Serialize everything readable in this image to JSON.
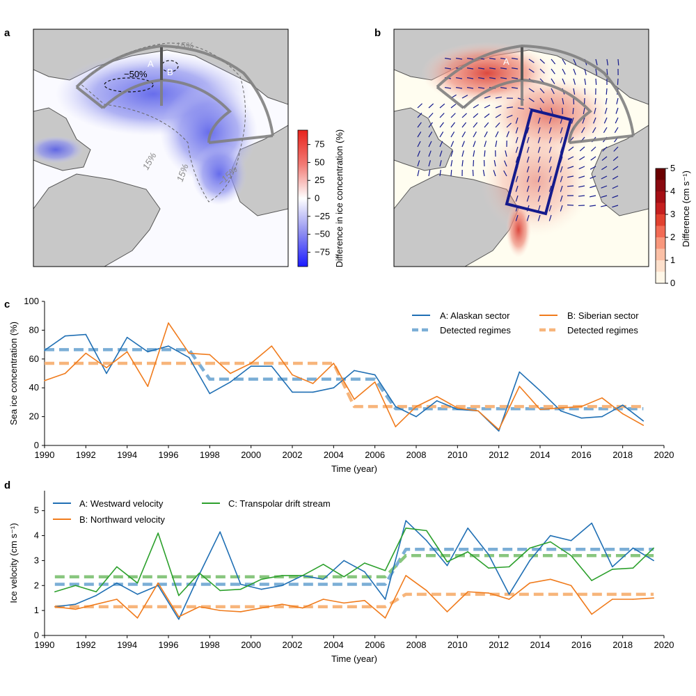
{
  "colors": {
    "blue": "#1f6fb4",
    "orange": "#f07b1c",
    "green": "#2ca02c",
    "regime_blue": "#7baed6",
    "regime_orange": "#f7b57b",
    "regime_green": "#88c67e",
    "land": "#c8c8c8",
    "coast": "#555555",
    "box": "#141a8c"
  },
  "panel_a": {
    "letter": "a",
    "labels": {
      "A": "A",
      "B": "B",
      "p50": "−50%",
      "p15a": "15%",
      "p15b": "15%",
      "p15c": "15%",
      "p15d": "−15%"
    },
    "colorbar": {
      "label": "Difference in ice concentration (%)",
      "ticks": [
        "75",
        "50",
        "25",
        "0",
        "−25",
        "−50",
        "−75"
      ],
      "range": [
        -95,
        95
      ]
    }
  },
  "panel_b": {
    "letter": "b",
    "labels": {
      "A": "A"
    },
    "colorbar": {
      "label": "Difference (cm s⁻¹)",
      "ticks": [
        "5",
        "4",
        "3",
        "2",
        "1",
        "0"
      ],
      "range": [
        0,
        5
      ]
    }
  },
  "chart_data": [
    {
      "panel": "c",
      "type": "line",
      "xlabel": "Time (year)",
      "ylabel": "Sea ice concentration (%)",
      "xlim": [
        1990,
        2020
      ],
      "ylim": [
        0,
        100
      ],
      "xticks": [
        1990,
        1992,
        1994,
        1996,
        1998,
        2000,
        2002,
        2004,
        2006,
        2008,
        2010,
        2012,
        2014,
        2016,
        2018,
        2020
      ],
      "yticks": [
        0,
        20,
        40,
        60,
        80,
        100
      ],
      "grid": false,
      "legend_position": "top-right",
      "x": [
        1990,
        1991,
        1992,
        1993,
        1994,
        1995,
        1996,
        1997,
        1998,
        1999,
        2000,
        2001,
        2002,
        2003,
        2004,
        2005,
        2006,
        2007,
        2008,
        2009,
        2010,
        2011,
        2012,
        2013,
        2014,
        2015,
        2016,
        2017,
        2018,
        2019
      ],
      "series": [
        {
          "name": "A: Alaskan sector",
          "color": "#1f6fb4",
          "values": [
            66,
            76,
            77,
            50,
            75,
            65,
            69,
            61,
            36,
            44,
            55,
            55,
            37,
            37,
            40,
            52,
            49,
            27,
            20,
            31,
            25,
            24,
            10,
            51,
            38,
            24,
            19,
            20,
            28,
            17
          ]
        },
        {
          "name": "B: Siberian sector",
          "color": "#f07b1c",
          "values": [
            45,
            50,
            64,
            54,
            65,
            41,
            85,
            64,
            63,
            50,
            57,
            69,
            49,
            43,
            57,
            32,
            44,
            13,
            27,
            34,
            26,
            24,
            11,
            41,
            25,
            26,
            27,
            33,
            22,
            14
          ]
        }
      ],
      "regimes": [
        {
          "name": "Detected regimes",
          "color": "#7baed6",
          "segments": [
            {
              "x": [
                1990,
                1997
              ],
              "y": 66.5
            },
            {
              "x": [
                1998,
                2006
              ],
              "y": 46
            },
            {
              "x": [
                2007,
                2019
              ],
              "y": 25.5
            }
          ]
        },
        {
          "name": "Detected regimes",
          "color": "#f7b57b",
          "segments": [
            {
              "x": [
                1990,
                2004
              ],
              "y": 57
            },
            {
              "x": [
                2005,
                2019
              ],
              "y": 27
            }
          ]
        }
      ]
    },
    {
      "panel": "d",
      "type": "line",
      "xlabel": "Time (year)",
      "ylabel": "Ice velocity (cm s⁻¹)",
      "xlim": [
        1990,
        2020
      ],
      "ylim": [
        0,
        5.8
      ],
      "xticks": [
        1990,
        1992,
        1994,
        1996,
        1998,
        2000,
        2002,
        2004,
        2006,
        2008,
        2010,
        2012,
        2014,
        2016,
        2018,
        2020
      ],
      "yticks": [
        0,
        1,
        2,
        3,
        4,
        5
      ],
      "grid": false,
      "legend_position": "top-left",
      "x": [
        1990.5,
        1991.5,
        1992.5,
        1993.5,
        1994.5,
        1995.5,
        1996.5,
        1997.5,
        1998.5,
        1999.5,
        2000.5,
        2001.5,
        2002.5,
        2003.5,
        2004.5,
        2005.5,
        2006.5,
        2007.5,
        2008.5,
        2009.5,
        2010.5,
        2011.5,
        2012.5,
        2013.5,
        2014.5,
        2015.5,
        2016.5,
        2017.5,
        2018.5,
        2019.5
      ],
      "series": [
        {
          "name": "A: Westward velocity",
          "color": "#1f6fb4",
          "values": [
            1.15,
            1.25,
            1.6,
            2.1,
            1.65,
            2.0,
            0.65,
            2.45,
            4.15,
            2.05,
            1.85,
            2.0,
            2.4,
            2.25,
            3.0,
            2.55,
            1.45,
            4.6,
            3.8,
            2.8,
            4.3,
            3.25,
            1.65,
            3.0,
            4.0,
            3.8,
            4.5,
            2.75,
            3.5,
            3.0
          ]
        },
        {
          "name": "B: Northward velocity",
          "color": "#f07b1c",
          "values": [
            1.15,
            1.05,
            1.25,
            1.45,
            0.7,
            2.1,
            0.75,
            1.15,
            1.0,
            0.95,
            1.1,
            1.25,
            1.1,
            1.45,
            1.3,
            1.4,
            0.7,
            2.4,
            1.8,
            0.95,
            1.75,
            1.7,
            1.45,
            2.1,
            2.25,
            2.0,
            0.85,
            1.45,
            1.45,
            1.5
          ]
        },
        {
          "name": "C: Transpolar drift stream",
          "color": "#2ca02c",
          "values": [
            1.75,
            2.0,
            1.75,
            2.75,
            2.1,
            4.1,
            1.6,
            2.5,
            1.8,
            1.85,
            2.25,
            2.4,
            2.4,
            2.85,
            2.35,
            2.9,
            2.6,
            4.3,
            4.2,
            2.95,
            3.35,
            2.7,
            2.75,
            3.5,
            3.75,
            3.2,
            2.2,
            2.65,
            2.7,
            3.5
          ]
        }
      ],
      "regimes": [
        {
          "color": "#7baed6",
          "segments": [
            {
              "x": [
                1990.5,
                2006.5
              ],
              "y": 2.05
            },
            {
              "x": [
                2007.5,
                2019.5
              ],
              "y": 3.45
            }
          ]
        },
        {
          "color": "#f7b57b",
          "segments": [
            {
              "x": [
                1990.5,
                2006.5
              ],
              "y": 1.15
            },
            {
              "x": [
                2007.5,
                2019.5
              ],
              "y": 1.65
            }
          ]
        },
        {
          "color": "#88c67e",
          "segments": [
            {
              "x": [
                1990.5,
                2006.5
              ],
              "y": 2.35
            },
            {
              "x": [
                2007.5,
                2019.5
              ],
              "y": 3.2
            }
          ]
        }
      ]
    }
  ]
}
